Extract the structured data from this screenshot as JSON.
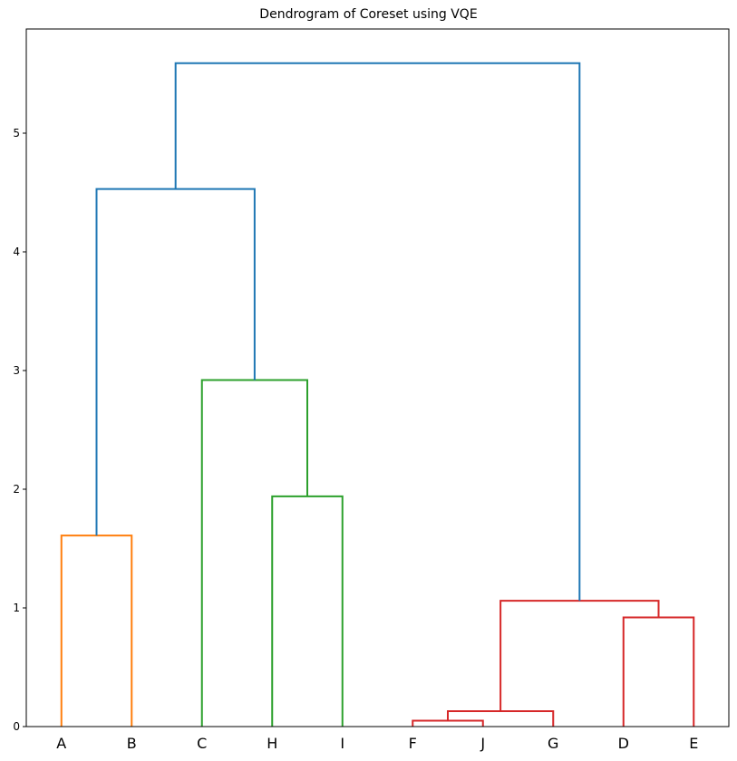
{
  "chart_data": {
    "type": "dendrogram",
    "title": "Dendrogram of Coreset using VQE",
    "xlabel": "",
    "ylabel": "",
    "ylim": [
      0,
      5.85
    ],
    "yticks": [
      0,
      1,
      2,
      3,
      4,
      5
    ],
    "leaves": [
      "A",
      "B",
      "C",
      "H",
      "I",
      "F",
      "J",
      "G",
      "D",
      "E"
    ],
    "merges": [
      {
        "left": "F",
        "right": "J",
        "height": 0.05,
        "color": "#d62728"
      },
      {
        "left": "FJ",
        "right": "G",
        "height": 0.13,
        "color": "#d62728"
      },
      {
        "left": "D",
        "right": "E",
        "height": 0.92,
        "color": "#d62728"
      },
      {
        "left": "FJG",
        "right": "DE",
        "height": 1.06,
        "color": "#d62728"
      },
      {
        "left": "A",
        "right": "B",
        "height": 1.61,
        "color": "#ff7f0e"
      },
      {
        "left": "H",
        "right": "I",
        "height": 1.94,
        "color": "#2ca02c"
      },
      {
        "left": "C",
        "right": "HI",
        "height": 2.92,
        "color": "#2ca02c"
      },
      {
        "left": "AB",
        "right": "CHI",
        "height": 4.53,
        "color": "#1f77b4"
      },
      {
        "left": "ABCHI",
        "right": "FJGDE",
        "height": 5.59,
        "color": "#1f77b4"
      }
    ],
    "grid": false
  }
}
